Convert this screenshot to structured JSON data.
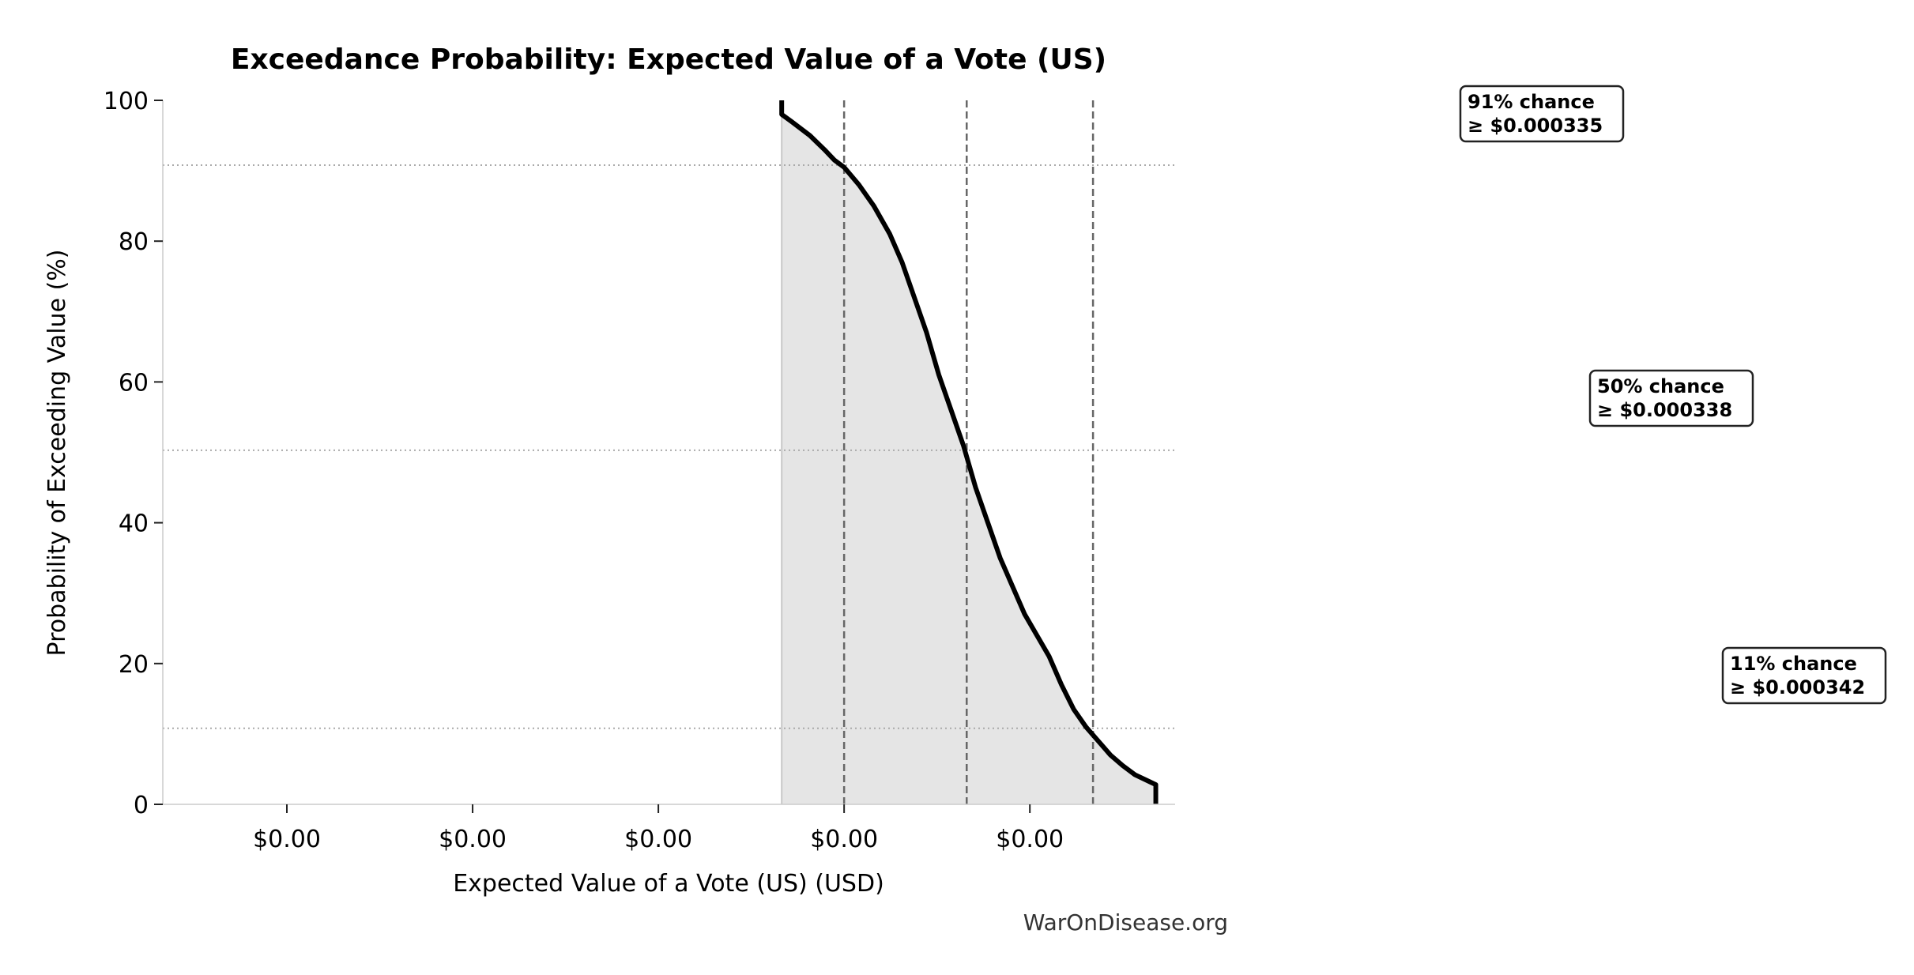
{
  "chart_data": {
    "type": "line",
    "title": "Exceedance Probability: Expected Value of a Vote (US)",
    "xlabel": "Expected Value of a Vote (US) (USD)",
    "ylabel": "Probability of Exceeding Value (%)",
    "xlim": [
      0.00031666,
      0.00034391
    ],
    "ylim": [
      0,
      100
    ],
    "grid": false,
    "x_ticks": [
      0.00032,
      0.000325,
      0.00033,
      0.000335,
      0.00034
    ],
    "x_tick_labels": [
      "$0.00",
      "$0.00",
      "$0.00",
      "$0.00",
      "$0.00"
    ],
    "y_ticks": [
      0,
      20,
      40,
      60,
      80,
      100
    ],
    "y_tick_labels": [
      "0",
      "20",
      "40",
      "60",
      "80",
      "100"
    ],
    "series": [
      {
        "x": [
          0.00033332,
          0.00033332,
          0.00033358,
          0.00033408,
          0.00033447,
          0.00033474,
          0.000335,
          0.0003354,
          0.0003358,
          0.00033623,
          0.00033656,
          0.00033689,
          0.00033722,
          0.00033755,
          0.00033788,
          0.00033821,
          0.00033854,
          0.00033887,
          0.0003392,
          0.00033953,
          0.00033986,
          0.00034019,
          0.00034052,
          0.00034085,
          0.00034118,
          0.00034151,
          0.00034184,
          0.00034217,
          0.0003425,
          0.00034283,
          0.00034323,
          0.00034339,
          0.00034339
        ],
        "y": [
          100,
          98,
          97,
          95,
          93,
          91.5,
          90.5,
          88,
          85,
          81,
          77,
          72,
          67,
          61,
          56,
          51,
          45,
          40,
          35,
          31,
          27,
          24,
          21,
          17,
          13.5,
          11,
          9,
          7,
          5.5,
          4.2,
          3.2,
          2.8,
          0
        ]
      }
    ],
    "percentile_markers": [
      {
        "probability": 90.8,
        "value": 0.000335,
        "line1": "91% chance",
        "line2": "≥ $0.000335"
      },
      {
        "probability": 50.3,
        "value": 0.0003383,
        "line1": "50% chance",
        "line2": "≥ $0.000338"
      },
      {
        "probability": 10.8,
        "value": 0.0003417,
        "line1": "11% chance",
        "line2": "≥ $0.000342"
      }
    ],
    "colors": {
      "line": "#000000",
      "fill": "#e5e5e5",
      "marker_lines": "#666666",
      "prob_lines": "#aaaaaa"
    }
  },
  "watermark": "WarOnDisease.org"
}
